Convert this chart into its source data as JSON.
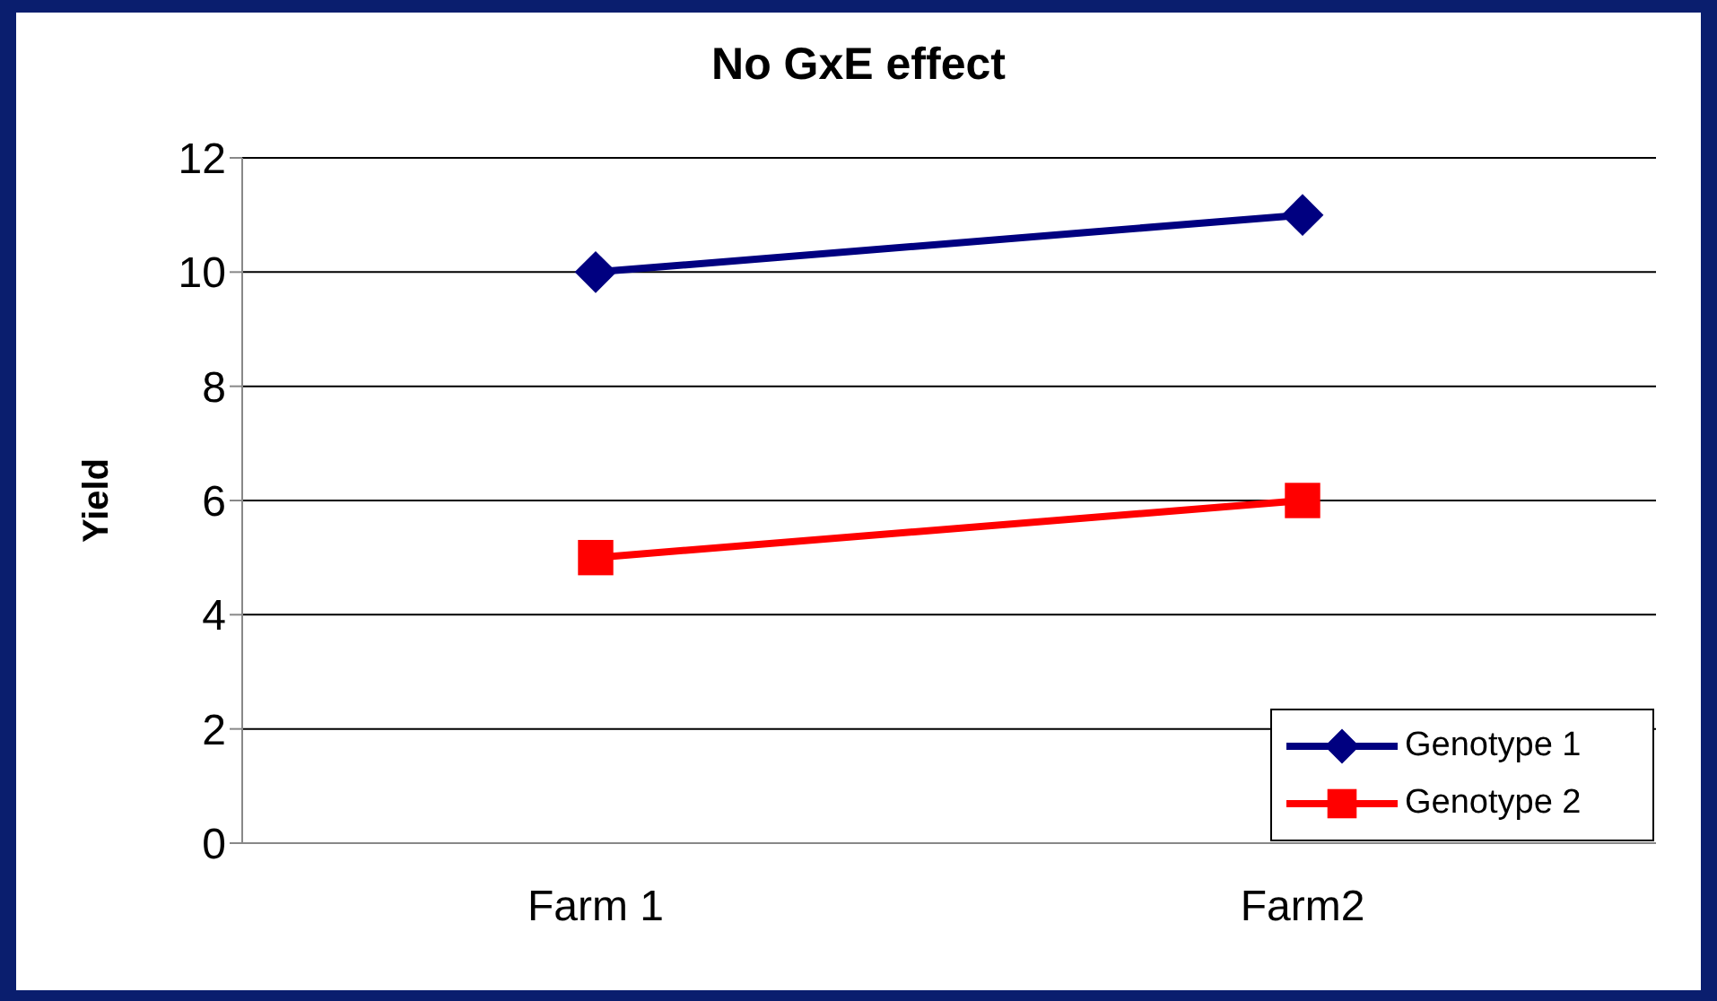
{
  "chart_data": {
    "type": "line",
    "title": "No GxE effect",
    "ylabel": "Yield",
    "categories": [
      "Farm 1",
      "Farm2"
    ],
    "series": [
      {
        "name": "Genotype 1",
        "color": "#000080",
        "values": [
          10,
          11
        ],
        "marker": "diamond"
      },
      {
        "name": "Genotype 2",
        "color": "#ff0000",
        "values": [
          5,
          6
        ],
        "marker": "square"
      }
    ],
    "ylim": [
      0,
      12
    ],
    "yticks": [
      0,
      2,
      4,
      6,
      8,
      10,
      12
    ],
    "grid": "y",
    "legend": "bottom right",
    "line_style": "solid"
  }
}
